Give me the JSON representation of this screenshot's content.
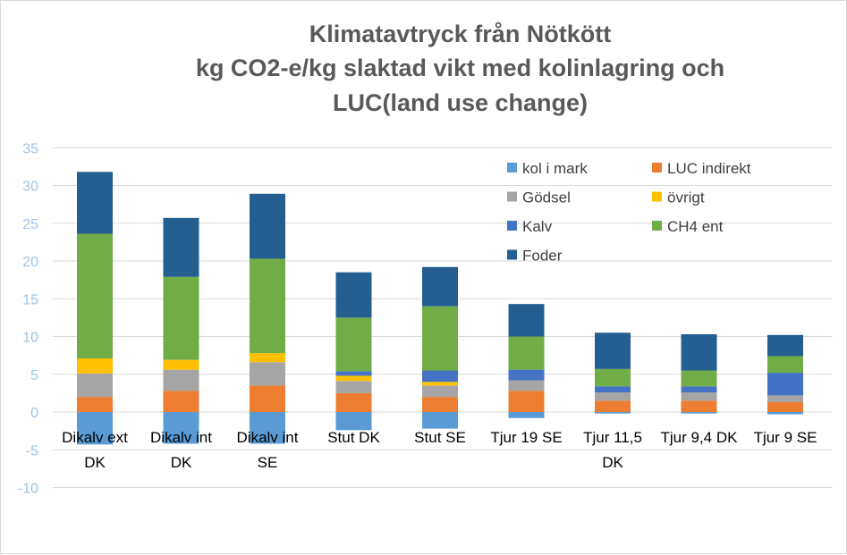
{
  "title": {
    "line1": "Klimatavtryck från Nötkött",
    "line2": "kg CO2-e/kg slaktad vikt med kolinlagring och",
    "line3": "LUC(land use change)"
  },
  "chart_data": {
    "type": "bar",
    "stacked": true,
    "title": "Klimatavtryck från Nötkött kg CO2-e/kg slaktad vikt med kolinlagring och LUC(land use change)",
    "categories": [
      "Dikalv ext DK",
      "Dikalv int DK",
      "Dikalv int SE",
      "Stut DK",
      "Stut SE",
      "Tjur 19 SE",
      "Tjur 11,5 DK",
      "Tjur 9,4 DK",
      "Tjur 9 SE"
    ],
    "category_lines": [
      [
        "Dikalv ext",
        "DK"
      ],
      [
        "Dikalv int",
        "DK"
      ],
      [
        "Dikalv int",
        "SE"
      ],
      [
        "Stut DK"
      ],
      [
        "Stut SE"
      ],
      [
        "Tjur 19 SE"
      ],
      [
        "Tjur 11,5",
        "DK"
      ],
      [
        "Tjur 9,4 DK"
      ],
      [
        "Tjur 9 SE"
      ]
    ],
    "ylim": [
      -10,
      35
    ],
    "yticks": [
      -10,
      -5,
      0,
      5,
      10,
      15,
      20,
      25,
      30,
      35
    ],
    "grid": true,
    "legend_position": "top-right",
    "series": [
      {
        "name": "kol i mark",
        "color": "#5b9bd5",
        "values": [
          -4.3,
          -4.2,
          -4.2,
          -2.4,
          -2.2,
          -0.8,
          -0.2,
          -0.2,
          -0.3
        ]
      },
      {
        "name": "LUC indirekt",
        "color": "#ed7d31",
        "values": [
          2.0,
          2.8,
          3.5,
          2.5,
          2.0,
          2.8,
          1.5,
          1.5,
          1.3
        ]
      },
      {
        "name": "Gödsel",
        "color": "#a5a5a5",
        "values": [
          3.1,
          2.8,
          3.1,
          1.6,
          1.5,
          1.4,
          1.1,
          1.1,
          0.9
        ]
      },
      {
        "name": "övrigt",
        "color": "#ffc000",
        "values": [
          2.0,
          1.3,
          1.2,
          0.7,
          0.5,
          0.0,
          0.0,
          0.0,
          0.0
        ]
      },
      {
        "name": "Kalv",
        "color": "#4472c4",
        "values": [
          0.0,
          0.0,
          0.0,
          0.6,
          1.5,
          1.4,
          0.8,
          0.8,
          3.0
        ]
      },
      {
        "name": "CH4 ent",
        "color": "#70ad47",
        "values": [
          16.5,
          11.0,
          12.5,
          7.1,
          8.5,
          4.4,
          2.3,
          2.1,
          2.2
        ]
      },
      {
        "name": "Foder",
        "color": "#255e91",
        "values": [
          8.2,
          7.8,
          8.6,
          6.0,
          5.2,
          4.3,
          4.8,
          4.8,
          2.8
        ]
      }
    ],
    "legend_order": [
      "kol i mark",
      "LUC indirekt",
      "Gödsel",
      "övrigt",
      "Kalv",
      "CH4 ent",
      "Foder"
    ]
  }
}
